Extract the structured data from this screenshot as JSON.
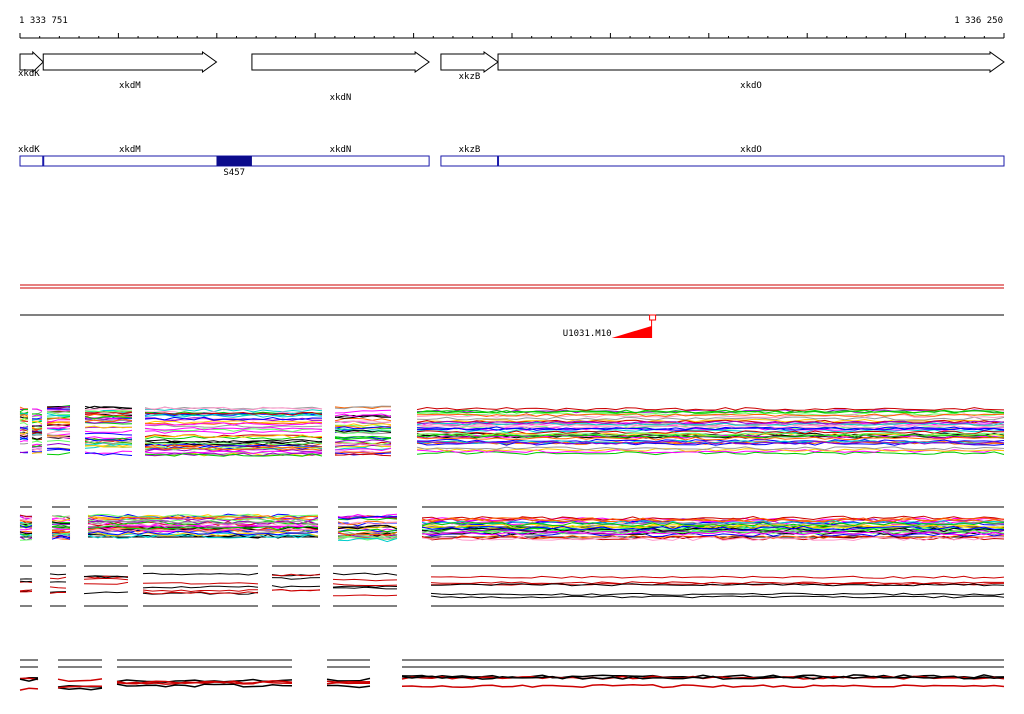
{
  "ruler": {
    "start_label": "1 333 751",
    "end_label": "1 336 250",
    "start_bp": 1333751,
    "end_bp": 1336250
  },
  "genes": [
    {
      "name": "xkdK",
      "start_bp": 1333751,
      "end_bp": 1333810,
      "strand": "+"
    },
    {
      "name": "xkdM",
      "start_bp": 1333810,
      "end_bp": 1334250,
      "strand": "+"
    },
    {
      "name": "xkdN",
      "start_bp": 1334340,
      "end_bp": 1334790,
      "strand": "+"
    },
    {
      "name": "xkzB",
      "start_bp": 1334820,
      "end_bp": 1334965,
      "strand": "+"
    },
    {
      "name": "xkdO",
      "start_bp": 1334965,
      "end_bp": 1336250,
      "strand": "+"
    }
  ],
  "operons": {
    "gene_labels": [
      "xkdK",
      "xkdM",
      "xkdN",
      "xkzB",
      "xkdO"
    ],
    "feature": {
      "name": "S457",
      "start_bp": 1334250,
      "end_bp": 1334340
    }
  },
  "promoter": {
    "name": "U1031.M10",
    "position_bp": 1335355,
    "strand": "-"
  },
  "colors": {
    "gene_outline": "#000000",
    "operon_outline": "#1a1aaa",
    "operon_feature": "#0b0b8c",
    "tiling_line": "#cc0000",
    "promoter": "#ff0000"
  }
}
